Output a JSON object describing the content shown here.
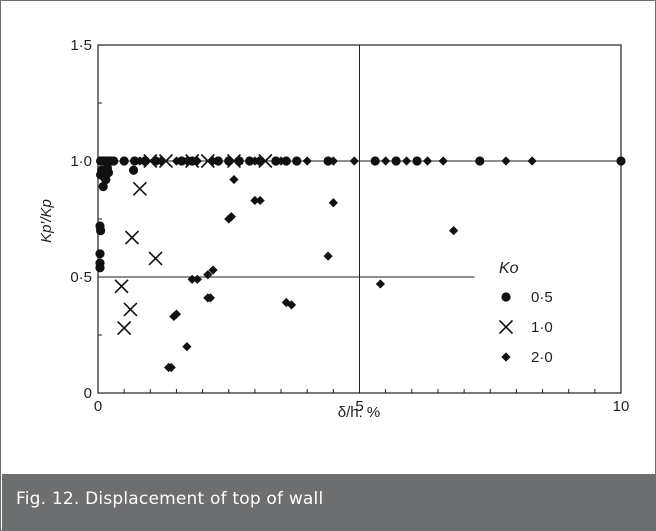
{
  "figure": {
    "caption": "Fig. 12. Displacement of top of wall"
  },
  "colors": {
    "caption_bg": "#6d6e70",
    "caption_text": "#ffffff",
    "axes": "#231f20",
    "markers": "#111111"
  },
  "chart_data": {
    "type": "scatter",
    "title": "",
    "xlabel": "δ/h: %",
    "ylabel": "Kp′/Kp",
    "xlim": [
      0,
      10
    ],
    "ylim": [
      0,
      1.5
    ],
    "x_ticks": [
      0,
      5,
      10
    ],
    "x_tick_labels": [
      "0",
      "5",
      "10"
    ],
    "y_ticks": [
      0,
      0.5,
      1.0,
      1.5
    ],
    "y_tick_labels": [
      "0",
      "0·5",
      "1·0",
      "1·5"
    ],
    "grid": "reference lines at y=0.5, y=1.0 and x=5",
    "legend": {
      "title": "Ko",
      "placement": "right",
      "entries": [
        "0·5",
        "1·0",
        "2·0"
      ]
    },
    "series": [
      {
        "name": "0·5",
        "marker": "circle",
        "points": [
          [
            0.0,
            0.54
          ],
          [
            0.0,
            0.56
          ],
          [
            0.02,
            0.6
          ],
          [
            0.03,
            0.72
          ],
          [
            0.05,
            0.7
          ],
          [
            0.05,
            0.94
          ],
          [
            0.07,
            0.96
          ],
          [
            0.1,
            0.89
          ],
          [
            0.12,
            0.93
          ],
          [
            0.15,
            0.92
          ],
          [
            0.18,
            0.97
          ],
          [
            0.2,
            0.95
          ],
          [
            0.05,
            1.0
          ],
          [
            0.1,
            1.0
          ],
          [
            0.15,
            1.0
          ],
          [
            0.2,
            1.0
          ],
          [
            0.25,
            1.0
          ],
          [
            0.3,
            1.0
          ],
          [
            0.5,
            1.0
          ],
          [
            0.7,
            1.0
          ],
          [
            0.9,
            1.0
          ],
          [
            1.1,
            1.0
          ],
          [
            1.6,
            1.0
          ],
          [
            1.8,
            1.0
          ],
          [
            2.3,
            1.0
          ],
          [
            2.5,
            1.0
          ],
          [
            2.7,
            1.0
          ],
          [
            2.9,
            1.0
          ],
          [
            3.1,
            1.0
          ],
          [
            3.4,
            1.0
          ],
          [
            3.6,
            1.0
          ],
          [
            3.8,
            1.0
          ],
          [
            4.4,
            1.0
          ],
          [
            5.3,
            1.0
          ],
          [
            5.7,
            1.0
          ],
          [
            6.1,
            1.0
          ],
          [
            7.3,
            1.0
          ],
          [
            10.0,
            1.0
          ],
          [
            0.68,
            0.96
          ]
        ]
      },
      {
        "name": "1·0",
        "marker": "cross",
        "points": [
          [
            0.45,
            0.46
          ],
          [
            0.5,
            0.28
          ],
          [
            0.62,
            0.36
          ],
          [
            0.65,
            0.67
          ],
          [
            0.8,
            0.88
          ],
          [
            1.1,
            0.58
          ],
          [
            1.0,
            1.0
          ],
          [
            1.3,
            1.0
          ],
          [
            1.8,
            1.0
          ],
          [
            2.1,
            1.0
          ],
          [
            2.6,
            1.0
          ],
          [
            3.2,
            1.0
          ]
        ]
      },
      {
        "name": "2·0",
        "marker": "diamond",
        "points": [
          [
            1.35,
            0.11
          ],
          [
            1.4,
            0.11
          ],
          [
            1.45,
            0.33
          ],
          [
            1.5,
            0.34
          ],
          [
            1.7,
            0.2
          ],
          [
            1.8,
            0.49
          ],
          [
            1.9,
            0.49
          ],
          [
            2.1,
            0.41
          ],
          [
            2.15,
            0.41
          ],
          [
            2.1,
            0.51
          ],
          [
            2.2,
            0.53
          ],
          [
            2.6,
            0.92
          ],
          [
            2.55,
            0.76
          ],
          [
            2.5,
            0.75
          ],
          [
            3.0,
            0.83
          ],
          [
            3.1,
            0.83
          ],
          [
            3.6,
            0.39
          ],
          [
            3.7,
            0.38
          ],
          [
            4.4,
            0.59
          ],
          [
            4.5,
            0.82
          ],
          [
            5.4,
            0.47
          ],
          [
            6.8,
            0.7
          ],
          [
            0.8,
            1.0
          ],
          [
            1.2,
            1.0
          ],
          [
            1.5,
            1.0
          ],
          [
            1.7,
            1.0
          ],
          [
            1.9,
            1.0
          ],
          [
            2.2,
            1.0
          ],
          [
            2.5,
            1.0
          ],
          [
            3.0,
            1.0
          ],
          [
            3.5,
            1.0
          ],
          [
            4.0,
            1.0
          ],
          [
            4.5,
            1.0
          ],
          [
            4.9,
            1.0
          ],
          [
            5.5,
            1.0
          ],
          [
            5.9,
            1.0
          ],
          [
            6.3,
            1.0
          ],
          [
            6.6,
            1.0
          ],
          [
            7.8,
            1.0
          ],
          [
            8.3,
            1.0
          ]
        ]
      }
    ]
  }
}
